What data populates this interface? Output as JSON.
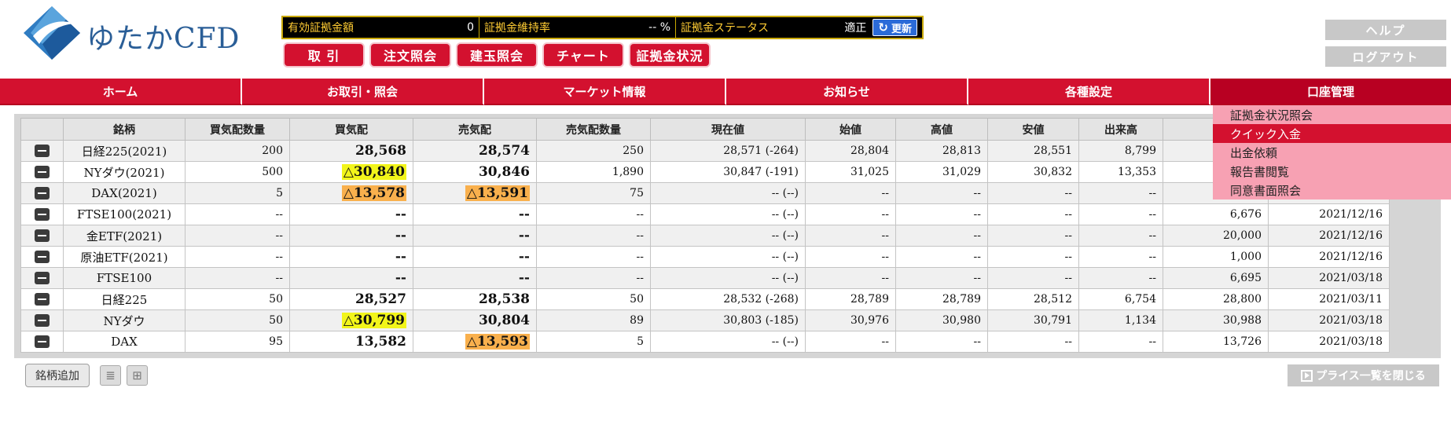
{
  "logo": {
    "text": "ゆたかCFD"
  },
  "status": {
    "margin_label": "有効証拠金額",
    "margin_value": "0",
    "maint_label": "証拠金維持率",
    "maint_value": "-- %",
    "state_label": "証拠金ステータス",
    "state_value": "適正",
    "refresh_label": "更新"
  },
  "actions": [
    "取 引",
    "注文照会",
    "建玉照会",
    "チャート",
    "証拠金状況"
  ],
  "side": {
    "help": "ヘルプ",
    "logout": "ログアウト"
  },
  "nav": [
    "ホーム",
    "お取引・照会",
    "マーケット情報",
    "お知らせ",
    "各種設定",
    "口座管理"
  ],
  "table": {
    "headers": [
      "",
      "銘柄",
      "買気配数量",
      "買気配",
      "売気配",
      "売気配数量",
      "現在値",
      "始値",
      "高値",
      "安値",
      "出来高",
      "",
      ""
    ],
    "rows": [
      {
        "name": "日経225(2021)",
        "bidq": "200",
        "bid": "28,568",
        "ask": "28,574",
        "askq": "250",
        "last": "28,571 (-264)",
        "open": "28,804",
        "high": "28,813",
        "low": "28,551",
        "vol": "8,799",
        "prev": "",
        "date": ""
      },
      {
        "name": "NYダウ(2021)",
        "bidq": "500",
        "bid": "△30,840",
        "ask": "30,846",
        "askq": "1,890",
        "last": "30,847 (-191)",
        "open": "31,025",
        "high": "31,029",
        "low": "30,832",
        "vol": "13,353",
        "prev": "",
        "date": ""
      },
      {
        "name": "DAX(2021)",
        "bidq": "5",
        "bid": "△13,578",
        "ask": "△13,591",
        "askq": "75",
        "last": "-- (--)",
        "open": "--",
        "high": "--",
        "low": "--",
        "vol": "--",
        "prev": "",
        "date": ""
      },
      {
        "name": "FTSE100(2021)",
        "bidq": "--",
        "bid": "--",
        "ask": "--",
        "askq": "--",
        "last": "-- (--)",
        "open": "--",
        "high": "--",
        "low": "--",
        "vol": "--",
        "prev": "6,676",
        "date": "2021/12/16"
      },
      {
        "name": "金ETF(2021)",
        "bidq": "--",
        "bid": "--",
        "ask": "--",
        "askq": "--",
        "last": "-- (--)",
        "open": "--",
        "high": "--",
        "low": "--",
        "vol": "--",
        "prev": "20,000",
        "date": "2021/12/16"
      },
      {
        "name": "原油ETF(2021)",
        "bidq": "--",
        "bid": "--",
        "ask": "--",
        "askq": "--",
        "last": "-- (--)",
        "open": "--",
        "high": "--",
        "low": "--",
        "vol": "--",
        "prev": "1,000",
        "date": "2021/12/16"
      },
      {
        "name": "FTSE100",
        "bidq": "--",
        "bid": "--",
        "ask": "--",
        "askq": "--",
        "last": "-- (--)",
        "open": "--",
        "high": "--",
        "low": "--",
        "vol": "--",
        "prev": "6,695",
        "date": "2021/03/18"
      },
      {
        "name": "日経225",
        "bidq": "50",
        "bid": "28,527",
        "ask": "28,538",
        "askq": "50",
        "last": "28,532 (-268)",
        "open": "28,789",
        "high": "28,789",
        "low": "28,512",
        "vol": "6,754",
        "prev": "28,800",
        "date": "2021/03/11"
      },
      {
        "name": "NYダウ",
        "bidq": "50",
        "bid": "△30,799",
        "ask": "30,804",
        "askq": "89",
        "last": "30,803 (-185)",
        "open": "30,976",
        "high": "30,980",
        "low": "30,791",
        "vol": "1,134",
        "prev": "30,988",
        "date": "2021/03/18"
      },
      {
        "name": "DAX",
        "bidq": "95",
        "bid": "13,582",
        "ask": "△13,593",
        "askq": "5",
        "last": "-- (--)",
        "open": "--",
        "high": "--",
        "low": "--",
        "vol": "--",
        "prev": "13,726",
        "date": "2021/03/18"
      }
    ],
    "highlights": {
      "1": {
        "bid": "yellow"
      },
      "2": {
        "bid": "orange",
        "ask": "orange"
      },
      "8": {
        "bid": "yellow"
      },
      "9": {
        "ask": "orange"
      }
    }
  },
  "dropdown": {
    "items": [
      "証拠金状況照会",
      "クイック入金",
      "出金依頼",
      "報告書閲覧",
      "同意書面照会"
    ],
    "active_index": 1
  },
  "bottom": {
    "add_label": "銘柄追加",
    "close_label": "プライス一覧を閉じる"
  },
  "icons": {
    "list_view": "list-view-icon",
    "grid_view": "grid-view-icon",
    "refresh": "refresh-icon",
    "minus": "minus-icon",
    "play": "play-icon"
  },
  "colors": {
    "brand_red": "#d3112f",
    "bid_blue": "#1a1ad6",
    "ask_red": "#e61919",
    "highlight_yellow": "#f2f51a",
    "highlight_orange": "#f9b04d"
  }
}
